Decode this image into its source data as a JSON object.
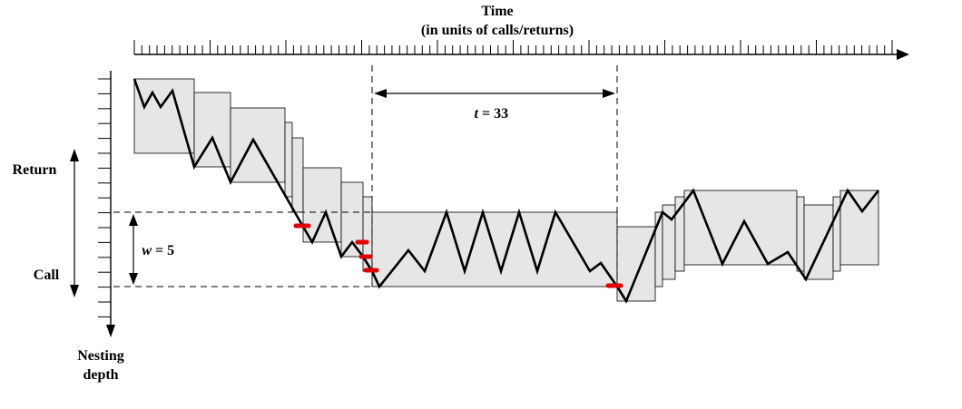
{
  "labels": {
    "time_line1": "Time",
    "time_line2": "(in units of calls/returns)",
    "return": "Return",
    "call": "Call",
    "nesting_line1": "Nesting",
    "nesting_line2": "depth",
    "t_var": "t",
    "t_eq": "= 33",
    "w_var": "w",
    "w_eq": "= 5"
  },
  "colors": {
    "box_fill": "#e6e6e6",
    "line": "#000000",
    "marker": "#e00000"
  }
}
